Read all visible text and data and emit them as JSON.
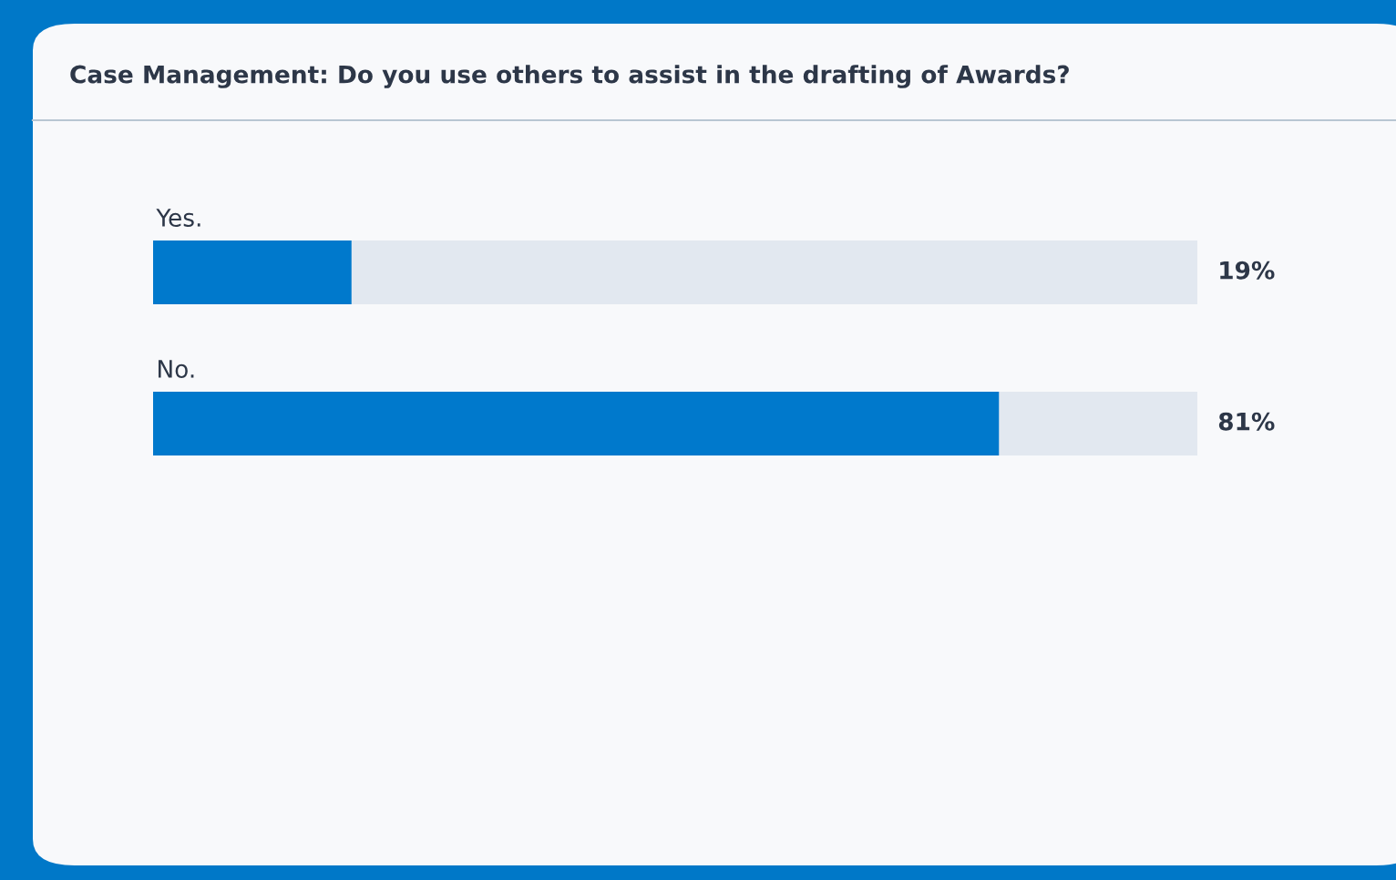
{
  "chart_data": {
    "type": "bar",
    "orientation": "horizontal",
    "title": "Case Management: Do you use others to assist in the drafting of Awards?",
    "categories": [
      "Yes.",
      "No."
    ],
    "values": [
      19,
      81
    ],
    "color": "#0079cc",
    "value_labels": [
      "19%",
      "81%"
    ],
    "xlim": [
      0,
      100
    ]
  }
}
